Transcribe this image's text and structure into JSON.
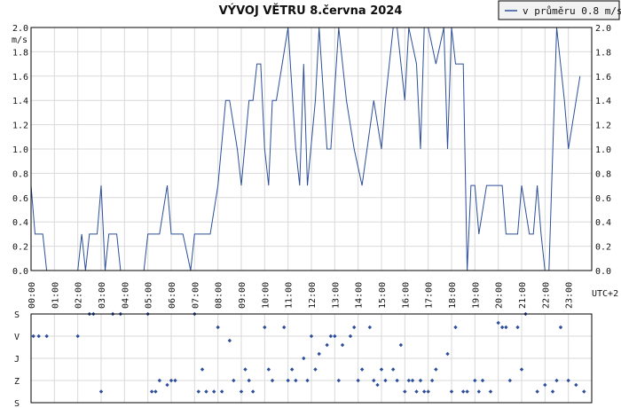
{
  "chart_data": [
    {
      "type": "line",
      "title": "VÝVOJ VĚTRU  8.června 2024",
      "ylabel": "m/s",
      "xlabel_unit": "UTC+2",
      "ylim": [
        0,
        2.0
      ],
      "xlim": [
        0,
        24
      ],
      "grid": true,
      "legend_position": "top-right",
      "y_ticks": [
        "0.0",
        "0.2",
        "0.4",
        "0.6",
        "0.8",
        "1.0",
        "1.2",
        "1.4",
        "1.6",
        "1.8",
        "2.0"
      ],
      "x_ticks": [
        "00:00",
        "01:00",
        "02:00",
        "03:00",
        "04:00",
        "05:00",
        "06:00",
        "07:00",
        "08:00",
        "09:00",
        "10:00",
        "11:00",
        "12:00",
        "13:00",
        "14:00",
        "15:00",
        "16:00",
        "17:00",
        "18:00",
        "19:00",
        "20:00",
        "21:00",
        "22:00",
        "23:00"
      ],
      "series": [
        {
          "name": "v průměru 0.8 m/s",
          "color": "#2d4f9a",
          "points": [
            [
              0.0,
              0.7
            ],
            [
              0.17,
              0.3
            ],
            [
              0.5,
              0.3
            ],
            [
              0.67,
              0.0
            ],
            [
              2.0,
              0.0
            ],
            [
              2.17,
              0.3
            ],
            [
              2.33,
              0.0
            ],
            [
              2.5,
              0.3
            ],
            [
              2.83,
              0.3
            ],
            [
              3.0,
              0.7
            ],
            [
              3.17,
              0.0
            ],
            [
              3.33,
              0.3
            ],
            [
              3.67,
              0.3
            ],
            [
              3.83,
              0.0
            ],
            [
              4.83,
              0.0
            ],
            [
              5.0,
              0.3
            ],
            [
              5.5,
              0.3
            ],
            [
              5.83,
              0.7
            ],
            [
              6.0,
              0.3
            ],
            [
              6.5,
              0.3
            ],
            [
              6.83,
              0.0
            ],
            [
              7.0,
              0.3
            ],
            [
              7.67,
              0.3
            ],
            [
              8.0,
              0.7
            ],
            [
              8.33,
              1.4
            ],
            [
              8.5,
              1.4
            ],
            [
              8.83,
              1.0
            ],
            [
              9.0,
              0.7
            ],
            [
              9.33,
              1.4
            ],
            [
              9.5,
              1.4
            ],
            [
              9.67,
              1.7
            ],
            [
              9.83,
              1.7
            ],
            [
              10.0,
              1.0
            ],
            [
              10.17,
              0.7
            ],
            [
              10.33,
              1.4
            ],
            [
              10.5,
              1.4
            ],
            [
              11.0,
              2.0
            ],
            [
              11.33,
              1.0
            ],
            [
              11.5,
              0.7
            ],
            [
              11.67,
              1.7
            ],
            [
              11.83,
              0.7
            ],
            [
              12.17,
              1.4
            ],
            [
              12.33,
              2.0
            ],
            [
              12.67,
              1.0
            ],
            [
              12.83,
              1.0
            ],
            [
              13.17,
              2.0
            ],
            [
              13.5,
              1.4
            ],
            [
              13.83,
              1.0
            ],
            [
              14.17,
              0.7
            ],
            [
              14.67,
              1.4
            ],
            [
              15.0,
              1.0
            ],
            [
              15.17,
              1.4
            ],
            [
              15.5,
              2.0
            ],
            [
              15.67,
              2.0
            ],
            [
              16.0,
              1.4
            ],
            [
              16.17,
              2.0
            ],
            [
              16.5,
              1.7
            ],
            [
              16.67,
              1.0
            ],
            [
              16.83,
              2.0
            ],
            [
              17.0,
              2.0
            ],
            [
              17.33,
              1.7
            ],
            [
              17.67,
              2.0
            ],
            [
              17.83,
              1.0
            ],
            [
              18.0,
              2.0
            ],
            [
              18.17,
              1.7
            ],
            [
              18.5,
              1.7
            ],
            [
              18.67,
              0.0
            ],
            [
              18.83,
              0.7
            ],
            [
              19.0,
              0.7
            ],
            [
              19.17,
              0.3
            ],
            [
              19.5,
              0.7
            ],
            [
              20.17,
              0.7
            ],
            [
              20.33,
              0.3
            ],
            [
              20.83,
              0.3
            ],
            [
              21.0,
              0.7
            ],
            [
              21.33,
              0.3
            ],
            [
              21.5,
              0.3
            ],
            [
              21.67,
              0.7
            ],
            [
              21.83,
              0.3
            ],
            [
              22.0,
              0.0
            ],
            [
              22.17,
              0.0
            ],
            [
              22.5,
              2.0
            ],
            [
              22.83,
              1.4
            ],
            [
              23.0,
              1.0
            ],
            [
              23.5,
              1.6
            ]
          ]
        }
      ]
    },
    {
      "type": "scatter",
      "y_categories": [
        "S",
        "V",
        "J",
        "Z",
        "S"
      ],
      "ylim": [
        0,
        4
      ],
      "xlim": [
        0,
        24
      ],
      "grid": true,
      "points": [
        [
          0.1,
          3.0
        ],
        [
          0.33,
          3.0
        ],
        [
          0.67,
          3.0
        ],
        [
          2.0,
          3.0
        ],
        [
          2.5,
          4.0
        ],
        [
          2.67,
          4.0
        ],
        [
          3.0,
          0.5
        ],
        [
          3.5,
          4.0
        ],
        [
          3.83,
          4.0
        ],
        [
          5.0,
          4.0
        ],
        [
          5.17,
          0.5
        ],
        [
          5.33,
          0.5
        ],
        [
          5.5,
          1.0
        ],
        [
          5.83,
          0.8
        ],
        [
          6.0,
          1.0
        ],
        [
          6.17,
          1.0
        ],
        [
          7.0,
          4.0
        ],
        [
          7.17,
          0.5
        ],
        [
          7.33,
          1.5
        ],
        [
          7.5,
          0.5
        ],
        [
          7.83,
          0.5
        ],
        [
          8.0,
          3.4
        ],
        [
          8.17,
          0.5
        ],
        [
          8.5,
          2.8
        ],
        [
          8.67,
          1.0
        ],
        [
          9.0,
          0.5
        ],
        [
          9.17,
          1.5
        ],
        [
          9.33,
          1.0
        ],
        [
          9.5,
          0.5
        ],
        [
          10.0,
          3.4
        ],
        [
          10.17,
          1.5
        ],
        [
          10.33,
          1.0
        ],
        [
          10.83,
          3.4
        ],
        [
          11.0,
          1.0
        ],
        [
          11.17,
          1.5
        ],
        [
          11.33,
          1.0
        ],
        [
          11.67,
          2.0
        ],
        [
          11.83,
          1.0
        ],
        [
          12.0,
          3.0
        ],
        [
          12.17,
          1.5
        ],
        [
          12.33,
          2.2
        ],
        [
          12.67,
          2.6
        ],
        [
          12.83,
          3.0
        ],
        [
          13.0,
          3.0
        ],
        [
          13.17,
          1.0
        ],
        [
          13.33,
          2.6
        ],
        [
          13.67,
          3.0
        ],
        [
          13.83,
          3.4
        ],
        [
          14.0,
          1.0
        ],
        [
          14.17,
          1.5
        ],
        [
          14.5,
          3.4
        ],
        [
          14.67,
          1.0
        ],
        [
          14.83,
          0.8
        ],
        [
          15.0,
          1.5
        ],
        [
          15.17,
          1.0
        ],
        [
          15.5,
          1.5
        ],
        [
          15.67,
          1.0
        ],
        [
          15.83,
          2.6
        ],
        [
          16.0,
          0.5
        ],
        [
          16.17,
          1.0
        ],
        [
          16.33,
          1.0
        ],
        [
          16.5,
          0.5
        ],
        [
          16.67,
          1.0
        ],
        [
          16.83,
          0.5
        ],
        [
          17.0,
          0.5
        ],
        [
          17.17,
          1.0
        ],
        [
          17.33,
          1.5
        ],
        [
          17.83,
          2.2
        ],
        [
          18.0,
          0.5
        ],
        [
          18.17,
          3.4
        ],
        [
          18.5,
          0.5
        ],
        [
          18.67,
          0.5
        ],
        [
          19.0,
          1.0
        ],
        [
          19.17,
          0.5
        ],
        [
          19.33,
          1.0
        ],
        [
          19.67,
          0.5
        ],
        [
          20.0,
          3.6
        ],
        [
          20.17,
          3.4
        ],
        [
          20.33,
          3.4
        ],
        [
          20.5,
          1.0
        ],
        [
          20.83,
          3.4
        ],
        [
          21.0,
          1.5
        ],
        [
          21.17,
          4.0
        ],
        [
          21.67,
          0.5
        ],
        [
          22.0,
          0.8
        ],
        [
          22.33,
          0.5
        ],
        [
          22.5,
          1.0
        ],
        [
          22.67,
          3.4
        ],
        [
          23.0,
          1.0
        ],
        [
          23.33,
          0.8
        ],
        [
          23.67,
          0.5
        ]
      ]
    }
  ]
}
